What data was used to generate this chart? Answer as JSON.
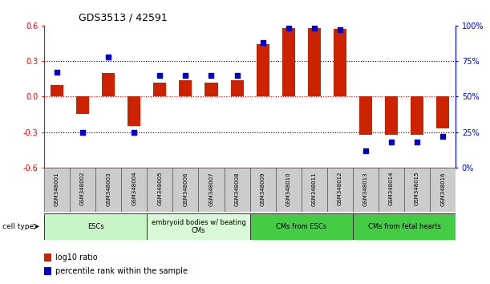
{
  "title": "GDS3513 / 42591",
  "samples": [
    "GSM348001",
    "GSM348002",
    "GSM348003",
    "GSM348004",
    "GSM348005",
    "GSM348006",
    "GSM348007",
    "GSM348008",
    "GSM348009",
    "GSM348010",
    "GSM348011",
    "GSM348012",
    "GSM348013",
    "GSM348014",
    "GSM348015",
    "GSM348016"
  ],
  "log10_ratio": [
    0.1,
    -0.15,
    0.2,
    -0.25,
    0.12,
    0.14,
    0.12,
    0.14,
    0.44,
    0.58,
    0.58,
    0.57,
    -0.32,
    -0.32,
    -0.32,
    -0.27
  ],
  "percentile_rank": [
    67,
    25,
    78,
    25,
    65,
    65,
    65,
    65,
    88,
    98,
    98,
    97,
    12,
    18,
    18,
    22
  ],
  "bar_color": "#cc2200",
  "dot_color": "#0000cc",
  "cell_types": [
    {
      "label": "ESCs",
      "start": 0,
      "end": 4,
      "color": "#c8f5c8"
    },
    {
      "label": "embryoid bodies w/ beating\nCMs",
      "start": 4,
      "end": 8,
      "color": "#d8f8d8"
    },
    {
      "label": "CMs from ESCs",
      "start": 8,
      "end": 12,
      "color": "#44cc44"
    },
    {
      "label": "CMs from fetal hearts",
      "start": 12,
      "end": 16,
      "color": "#44cc44"
    }
  ],
  "ylim_left": [
    -0.6,
    0.6
  ],
  "ylim_right": [
    0,
    100
  ],
  "yticks_left": [
    -0.6,
    -0.3,
    0.0,
    0.3,
    0.6
  ],
  "yticks_right": [
    0,
    25,
    50,
    75,
    100
  ],
  "ytick_labels_right": [
    "0%",
    "25%",
    "50%",
    "75%",
    "100%"
  ],
  "hlines": [
    0.3,
    0.0,
    -0.3
  ],
  "legend_red": "log10 ratio",
  "legend_blue": "percentile rank within the sample",
  "bar_width": 0.5,
  "dot_size": 20,
  "bg_color": "#ffffff"
}
